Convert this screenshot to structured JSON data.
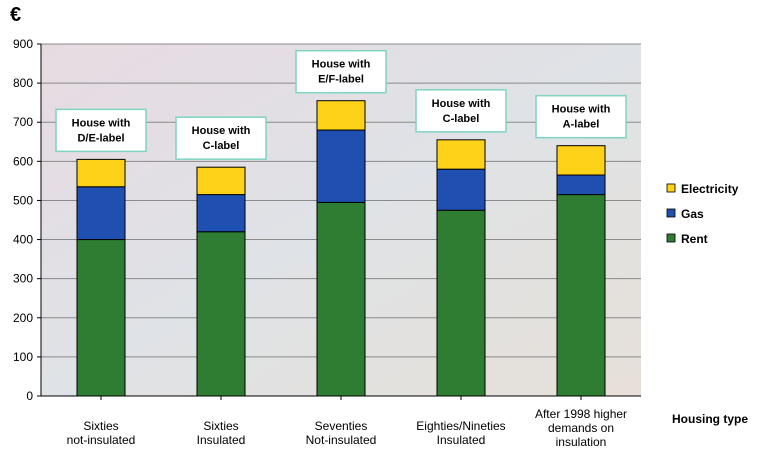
{
  "unit_symbol": "€",
  "chart_data": {
    "type": "bar",
    "stacked": true,
    "categories": [
      [
        "Sixties",
        "not-insulated"
      ],
      [
        "Sixties",
        "Insulated"
      ],
      [
        "Seventies",
        "Not-insulated"
      ],
      [
        "Eighties/Nineties",
        "Insulated"
      ],
      [
        "After 1998 higher",
        "demands on",
        "insulation"
      ]
    ],
    "series": [
      {
        "name": "Rent",
        "color": "#2e7d32",
        "values": [
          400,
          420,
          495,
          475,
          515
        ]
      },
      {
        "name": "Gas",
        "color": "#1f4fb0",
        "values": [
          135,
          95,
          185,
          105,
          50
        ]
      },
      {
        "name": "Electricity",
        "color": "#ffd21a",
        "values": [
          70,
          70,
          75,
          75,
          75
        ]
      }
    ],
    "legend_order": [
      "Electricity",
      "Gas",
      "Rent"
    ],
    "legend_position": "right",
    "ylim": [
      0,
      900
    ],
    "yticks": [
      0,
      100,
      200,
      300,
      400,
      500,
      600,
      700,
      800,
      900
    ],
    "xlabel": "Housing type",
    "ylabel": "",
    "grid": true,
    "annotations": [
      {
        "bar": 0,
        "lines": [
          "House with",
          "D/E-label"
        ]
      },
      {
        "bar": 1,
        "lines": [
          "House with",
          "C-label"
        ]
      },
      {
        "bar": 2,
        "lines": [
          "House with",
          "E/F-label"
        ]
      },
      {
        "bar": 3,
        "lines": [
          "House with",
          "C-label"
        ]
      },
      {
        "bar": 4,
        "lines": [
          "House with",
          "A-label"
        ]
      }
    ]
  }
}
